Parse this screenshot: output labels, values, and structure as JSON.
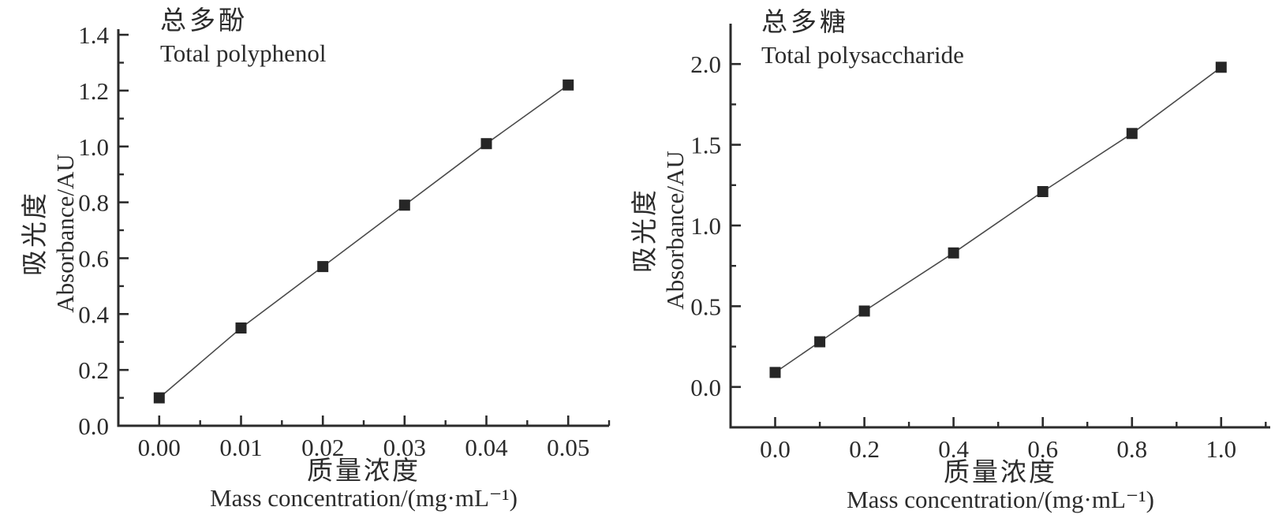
{
  "style": {
    "background": "#ffffff",
    "ink": "#2b2b2b",
    "line_color": "#4a4a4a",
    "marker_color": "#262626",
    "marker_size": 14
  },
  "chart_data": [
    {
      "type": "scatter",
      "title_zh": "总多酚",
      "title_en": "Total polyphenol",
      "ylabel_zh": "吸光度",
      "ylabel_en": "Absorbance/AU",
      "xlabel_zh": "质量浓度",
      "xlabel_en": "Mass concentration/(mg·mL⁻¹)",
      "x": [
        0.0,
        0.01,
        0.02,
        0.03,
        0.04,
        0.05
      ],
      "y": [
        0.1,
        0.35,
        0.57,
        0.79,
        1.01,
        1.22
      ],
      "xlim": [
        -0.005,
        0.055
      ],
      "ylim": [
        0,
        1.42
      ],
      "xticks_major": [
        0.0,
        0.01,
        0.02,
        0.03,
        0.04,
        0.05
      ],
      "xtick_labels": [
        "0.00",
        "0.01",
        "0.02",
        "0.03",
        "0.04",
        "0.05"
      ],
      "xticks_minor": [
        0.005,
        0.015,
        0.025,
        0.035,
        0.045,
        0.055
      ],
      "yticks_major": [
        0.0,
        0.2,
        0.4,
        0.6,
        0.8,
        1.0,
        1.2,
        1.4
      ],
      "ytick_labels": [
        "0.0",
        "0.2",
        "0.4",
        "0.6",
        "0.8",
        "1.0",
        "1.2",
        "1.4"
      ],
      "yticks_minor": [
        0.1,
        0.3,
        0.5,
        0.7,
        0.9,
        1.1,
        1.3
      ],
      "grid": "off",
      "legend": "none"
    },
    {
      "type": "scatter",
      "title_zh": "总多糖",
      "title_en": "Total polysaccharide",
      "ylabel_zh": "吸光度",
      "ylabel_en": "Absorbance/AU",
      "xlabel_zh": "质量浓度",
      "xlabel_en": "Mass concentration/(mg·mL⁻¹)",
      "x": [
        0.0,
        0.1,
        0.2,
        0.4,
        0.6,
        0.8,
        1.0
      ],
      "y": [
        0.09,
        0.28,
        0.47,
        0.83,
        1.21,
        1.57,
        1.98
      ],
      "xlim": [
        -0.1,
        1.11
      ],
      "ylim": [
        -0.25,
        2.25
      ],
      "xticks_major": [
        0.0,
        0.2,
        0.4,
        0.6,
        0.8,
        1.0
      ],
      "xtick_labels": [
        "0.0",
        "0.2",
        "0.4",
        "0.6",
        "0.8",
        "1.0"
      ],
      "xticks_minor": [
        0.1,
        0.3,
        0.5,
        0.7,
        0.9,
        1.1
      ],
      "yticks_major": [
        0.0,
        0.5,
        1.0,
        1.5,
        2.0
      ],
      "ytick_labels": [
        "0.0",
        "0.5",
        "1.0",
        "1.5",
        "2.0"
      ],
      "yticks_minor": [
        0.25,
        0.75,
        1.25,
        1.75
      ],
      "grid": "off",
      "legend": "none"
    }
  ]
}
